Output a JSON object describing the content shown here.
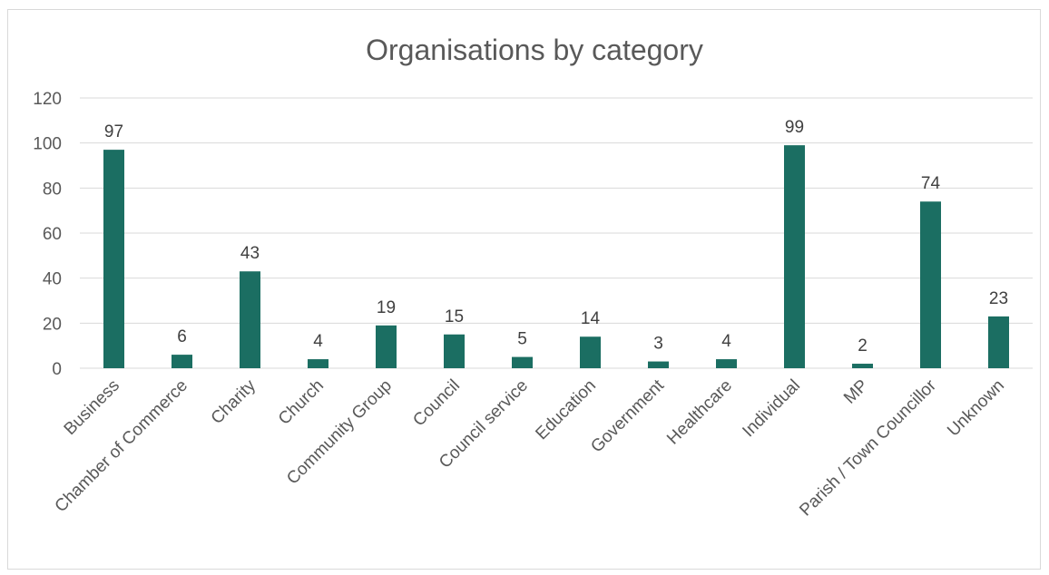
{
  "chart_data": {
    "type": "bar",
    "title": "Organisations by category",
    "xlabel": "",
    "ylabel": "",
    "categories": [
      "Business",
      "Chamber of Commerce",
      "Charity",
      "Church",
      "Community Group",
      "Council",
      "Council service",
      "Education",
      "Government",
      "Healthcare",
      "Individual",
      "MP",
      "Parish / Town Councillor",
      "Unknown"
    ],
    "values": [
      97,
      6,
      43,
      4,
      19,
      15,
      5,
      14,
      3,
      4,
      99,
      2,
      74,
      23
    ],
    "ylim": [
      0,
      120
    ],
    "yticks": [
      0,
      20,
      40,
      60,
      80,
      100,
      120
    ],
    "grid": true,
    "legend": "none",
    "bar_color": "#1b6e62"
  }
}
